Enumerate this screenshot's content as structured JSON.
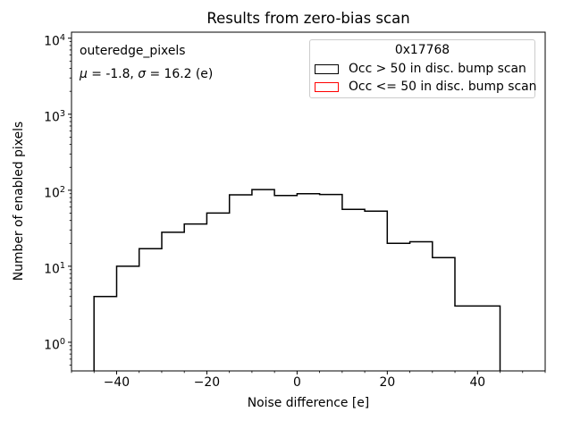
{
  "annotation": {
    "dataset_label": "outeredge_pixels",
    "mu_symbol": "μ",
    "mu_text": " = -1.8, ",
    "sigma_symbol": "σ",
    "sigma_text": " = 16.2 (e)"
  },
  "legend": {
    "title": "0x17768",
    "entries": [
      {
        "label": "Occ > 50 in disc. bump scan",
        "swatch_color": "#000000"
      },
      {
        "label": "Occ <= 50 in disc. bump scan",
        "swatch_color": "#ff0000"
      }
    ]
  },
  "chart_data": {
    "type": "bar",
    "subtype": "step-histogram",
    "title": "Results from zero-bias scan",
    "xlabel": "Noise difference [e]",
    "ylabel": "Number of enabled pixels",
    "yscale": "log",
    "xlim": [
      -50,
      55
    ],
    "ylim": [
      0.42,
      12000
    ],
    "xticks": [
      -40,
      -20,
      0,
      20,
      40
    ],
    "x_minor_step": 5,
    "ytick_exponents": [
      0,
      1,
      2,
      3,
      4
    ],
    "bin_start": -45,
    "bin_width": 5,
    "counts": [
      4,
      10,
      17,
      28,
      36,
      50,
      87,
      102,
      85,
      90,
      88,
      56,
      53,
      20,
      21,
      13,
      3,
      3
    ],
    "line_color": "#000000",
    "line_width": 1.5,
    "grid": false,
    "legend_position": "upper right"
  }
}
